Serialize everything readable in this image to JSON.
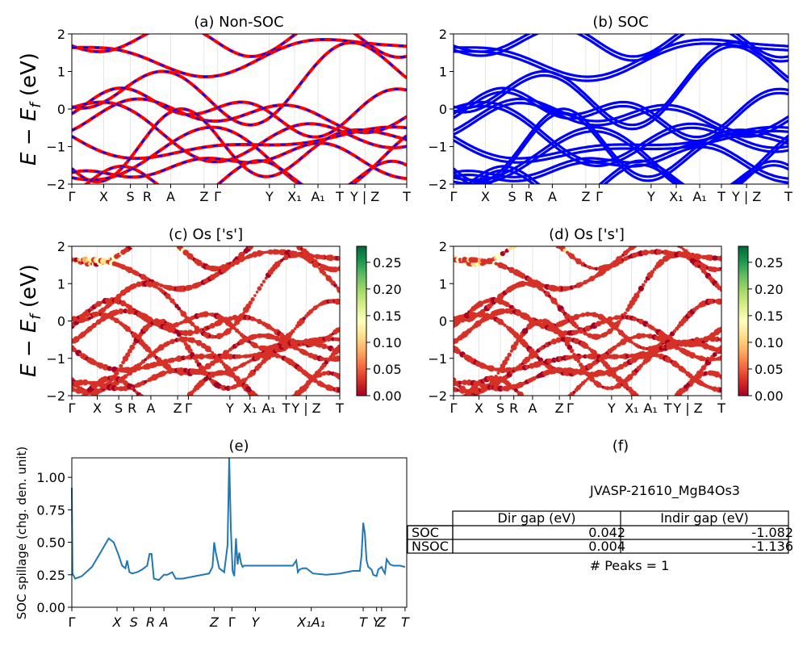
{
  "panels": {
    "a": {
      "title": "(a) Non-SOC"
    },
    "b": {
      "title": "(b) SOC"
    },
    "c": {
      "title": "(c)  Os ['s']"
    },
    "d": {
      "title": "(d) Os ['s']"
    },
    "e": {
      "title": "(e)"
    },
    "f": {
      "title": "(f)"
    }
  },
  "band_axis": {
    "ylabel": "E − E_f (eV)",
    "ylim": [
      -2,
      2
    ],
    "yticks": [
      "−2",
      "−1",
      "0",
      "1",
      "2"
    ],
    "kpath_labels": [
      "Γ",
      "X",
      "S",
      "R",
      "A",
      "Z",
      "Γ",
      "Y",
      "X₁",
      "A₁",
      "T",
      "Y | Z",
      "T"
    ],
    "kpath_positions": [
      0,
      0.095,
      0.175,
      0.225,
      0.295,
      0.395,
      0.435,
      0.59,
      0.665,
      0.735,
      0.8,
      0.875,
      1.0
    ]
  },
  "colorbar": {
    "ticks": [
      "0.00",
      "0.05",
      "0.10",
      "0.15",
      "0.20",
      "0.25"
    ],
    "range": [
      0,
      0.28
    ],
    "colormap": [
      "#a50026",
      "#d73027",
      "#f46d43",
      "#fdae61",
      "#fee08b",
      "#ffffbf",
      "#d9ef8b",
      "#a6d96a",
      "#66bd63",
      "#1a9850",
      "#006837"
    ]
  },
  "colors": {
    "nonsoc_band": "#ff0000",
    "nonsoc_dash": "#0000ff",
    "soc_band": "#0000ff",
    "spillage_line": "#1f77b4"
  },
  "spillage_axis": {
    "ylabel": "SOC spillage (chg. den. unit)",
    "ylim": [
      0,
      1.15
    ],
    "yticks": [
      "0.00",
      "0.25",
      "0.50",
      "0.75",
      "1.00"
    ],
    "xtick_labels": [
      "Γ",
      "X",
      "S",
      "R",
      "A",
      "Z",
      "Γ",
      "Y",
      "X₁A₁",
      "T",
      "Y",
      "Z",
      "T"
    ],
    "xtick_positions": [
      0,
      0.135,
      0.185,
      0.235,
      0.275,
      0.425,
      0.478,
      0.548,
      0.715,
      0.87,
      0.91,
      0.925,
      0.995
    ]
  },
  "chart_data": {
    "type": "line",
    "title": "(e)",
    "ylabel": "SOC spillage (chg. den. unit)",
    "ylim": [
      0,
      1.15
    ],
    "series": [
      {
        "x": [
          0,
          0.002,
          0.01,
          0.03,
          0.06,
          0.09,
          0.11,
          0.125,
          0.14,
          0.15,
          0.16,
          0.165,
          0.172,
          0.18,
          0.195,
          0.21,
          0.225,
          0.232,
          0.238,
          0.245,
          0.26,
          0.275,
          0.285,
          0.3,
          0.31,
          0.33,
          0.37,
          0.41,
          0.42,
          0.425,
          0.43,
          0.44,
          0.455,
          0.465,
          0.47,
          0.475,
          0.48,
          0.485,
          0.49,
          0.495,
          0.5,
          0.505,
          0.51,
          0.515,
          0.52,
          0.53,
          0.55,
          0.6,
          0.64,
          0.66,
          0.67,
          0.675,
          0.68,
          0.69,
          0.7,
          0.72,
          0.76,
          0.8,
          0.84,
          0.86,
          0.865,
          0.87,
          0.875,
          0.88,
          0.885,
          0.89,
          0.895,
          0.9,
          0.91,
          0.915,
          0.925,
          0.93,
          0.935,
          0.94,
          0.95,
          0.96,
          0.98,
          0.995
        ],
        "y": [
          0.92,
          0.26,
          0.22,
          0.24,
          0.31,
          0.44,
          0.53,
          0.5,
          0.4,
          0.32,
          0.3,
          0.36,
          0.27,
          0.26,
          0.27,
          0.29,
          0.32,
          0.41,
          0.41,
          0.22,
          0.21,
          0.25,
          0.25,
          0.27,
          0.22,
          0.22,
          0.24,
          0.26,
          0.31,
          0.5,
          0.42,
          0.3,
          0.27,
          0.48,
          1.15,
          0.6,
          0.28,
          0.24,
          0.53,
          0.33,
          0.42,
          0.34,
          0.31,
          0.32,
          0.32,
          0.32,
          0.32,
          0.32,
          0.32,
          0.32,
          0.36,
          0.27,
          0.29,
          0.3,
          0.3,
          0.26,
          0.25,
          0.26,
          0.28,
          0.28,
          0.4,
          0.65,
          0.57,
          0.36,
          0.31,
          0.3,
          0.29,
          0.25,
          0.24,
          0.29,
          0.31,
          0.28,
          0.26,
          0.37,
          0.33,
          0.32,
          0.32,
          0.31
        ]
      }
    ]
  },
  "table": {
    "title": "JVASP-21610_MgB4Os3",
    "headers": [
      "",
      "Dir gap (eV)",
      "Indir gap (eV)"
    ],
    "rows": [
      [
        "SOC",
        "0.042",
        "-1.082"
      ],
      [
        "NSOC",
        "0.004",
        "-1.136"
      ]
    ],
    "footer": "# Peaks = 1"
  }
}
